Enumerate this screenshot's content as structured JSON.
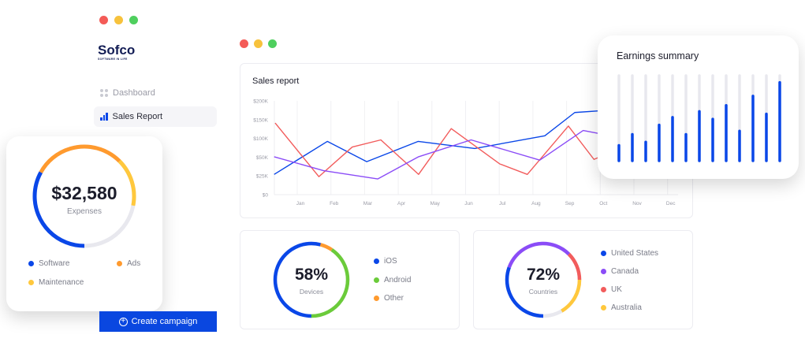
{
  "colors": {
    "blue": "#0a47e8",
    "red": "#f25c5c",
    "purple": "#8b4cf7",
    "orange": "#ff9a2e",
    "yellow": "#ffc83d",
    "green": "#6bcb3a",
    "track": "#e8e8ee",
    "window_red": "#f45b57",
    "window_yellow": "#f7c23c",
    "window_green": "#4fcf5e"
  },
  "logo": {
    "name": "Sofco",
    "tagline": "SOFTWARE IN LIFE"
  },
  "sidebar": {
    "items": [
      {
        "label": "Dashboard",
        "icon": "grid-icon",
        "active": false
      },
      {
        "label": "Sales Report",
        "icon": "bar-chart-icon",
        "active": true
      }
    ]
  },
  "expenses": {
    "amount": "$32,580",
    "label": "Expenses",
    "legend": [
      {
        "label": "Software",
        "color": "#0a47e8"
      },
      {
        "label": "Ads",
        "color": "#ff9a2e"
      },
      {
        "label": "Maintenance",
        "color": "#ffc83d"
      }
    ],
    "segments": [
      {
        "name": "Software",
        "start": 0.5,
        "fraction": 0.33,
        "color": "#0a47e8"
      },
      {
        "name": "Ads",
        "start": 0.83,
        "fraction": 0.295,
        "color": "#ff9a2e"
      },
      {
        "name": "Maintenance",
        "start": 0.125,
        "fraction": 0.155,
        "color": "#ffc83d"
      }
    ]
  },
  "create_campaign": {
    "label": "Create campaign",
    "icon": "plus-circle-icon"
  },
  "chart_data": [
    {
      "type": "line",
      "title": "Sales report",
      "xlabel": "",
      "ylabel": "",
      "categories": [
        "Jan",
        "Feb",
        "Mar",
        "Apr",
        "May",
        "Jun",
        "Jul",
        "Aug",
        "Sep",
        "Oct",
        "Nov",
        "Dec"
      ],
      "y_ticks": [
        "$0",
        "$25K",
        "$50K",
        "$100K",
        "$150K",
        "$200K"
      ],
      "y_tick_values": [
        0,
        25000,
        50000,
        100000,
        150000,
        200000
      ],
      "grid": "vertical",
      "x_unit": "month index (Jan=1)",
      "series": [
        {
          "color": "#0a47e8",
          "x": [
            0.22,
            1.8,
            2.97,
            4.5,
            6.18,
            8.26,
            9.15,
            9.98
          ],
          "y": [
            27000,
            92000,
            44000,
            92000,
            73000,
            107000,
            169000,
            174000
          ]
        },
        {
          "color": "#f25c5c",
          "x": [
            0.25,
            1.55,
            2.54,
            3.39,
            4.51,
            5.48,
            6.92,
            7.74,
            8.96,
            9.72,
            9.98
          ],
          "y": [
            141000,
            24000,
            77000,
            96000,
            27000,
            126000,
            41000,
            27000,
            133000,
            47000,
            54000
          ]
        },
        {
          "color": "#8b4cf7",
          "x": [
            0.22,
            1.69,
            3.3,
            4.51,
            6.07,
            8.11,
            9.4,
            9.98
          ],
          "y": [
            51000,
            32000,
            21000,
            51000,
            96000,
            46000,
            121000,
            111000
          ]
        }
      ]
    },
    {
      "type": "bar",
      "title": "Earnings summary",
      "ylim": [
        0,
        1
      ],
      "values": [
        0.18,
        0.31,
        0.22,
        0.42,
        0.51,
        0.31,
        0.58,
        0.49,
        0.65,
        0.35,
        0.76,
        0.55,
        0.92
      ]
    }
  ],
  "devices": {
    "value": "58%",
    "label": "Devices",
    "legend": [
      {
        "label": "iOS",
        "color": "#0a47e8"
      },
      {
        "label": "Android",
        "color": "#6bcb3a"
      },
      {
        "label": "Other",
        "color": "#ff9a2e"
      }
    ],
    "segments": [
      {
        "name": "iOS",
        "start": 0.5,
        "fraction": 0.54,
        "color": "#0a47e8"
      },
      {
        "name": "Other",
        "start": 0.04,
        "fraction": 0.055,
        "color": "#ff9a2e"
      },
      {
        "name": "Android",
        "start": 0.095,
        "fraction": 0.405,
        "color": "#6bcb3a"
      }
    ]
  },
  "countries": {
    "value": "72%",
    "label": "Countries",
    "legend": [
      {
        "label": "United States",
        "color": "#0a47e8"
      },
      {
        "label": "Canada",
        "color": "#8b4cf7"
      },
      {
        "label": "UK",
        "color": "#f25c5c"
      },
      {
        "label": "Australia",
        "color": "#ffc83d"
      }
    ],
    "segments": [
      {
        "name": "United States",
        "start": 0.5,
        "fraction": 0.305,
        "color": "#0a47e8"
      },
      {
        "name": "Canada",
        "start": 0.805,
        "fraction": 0.32,
        "color": "#8b4cf7"
      },
      {
        "name": "UK",
        "start": 0.125,
        "fraction": 0.125,
        "color": "#f25c5c"
      },
      {
        "name": "Australia",
        "start": 0.25,
        "fraction": 0.165,
        "color": "#ffc83d"
      }
    ]
  }
}
